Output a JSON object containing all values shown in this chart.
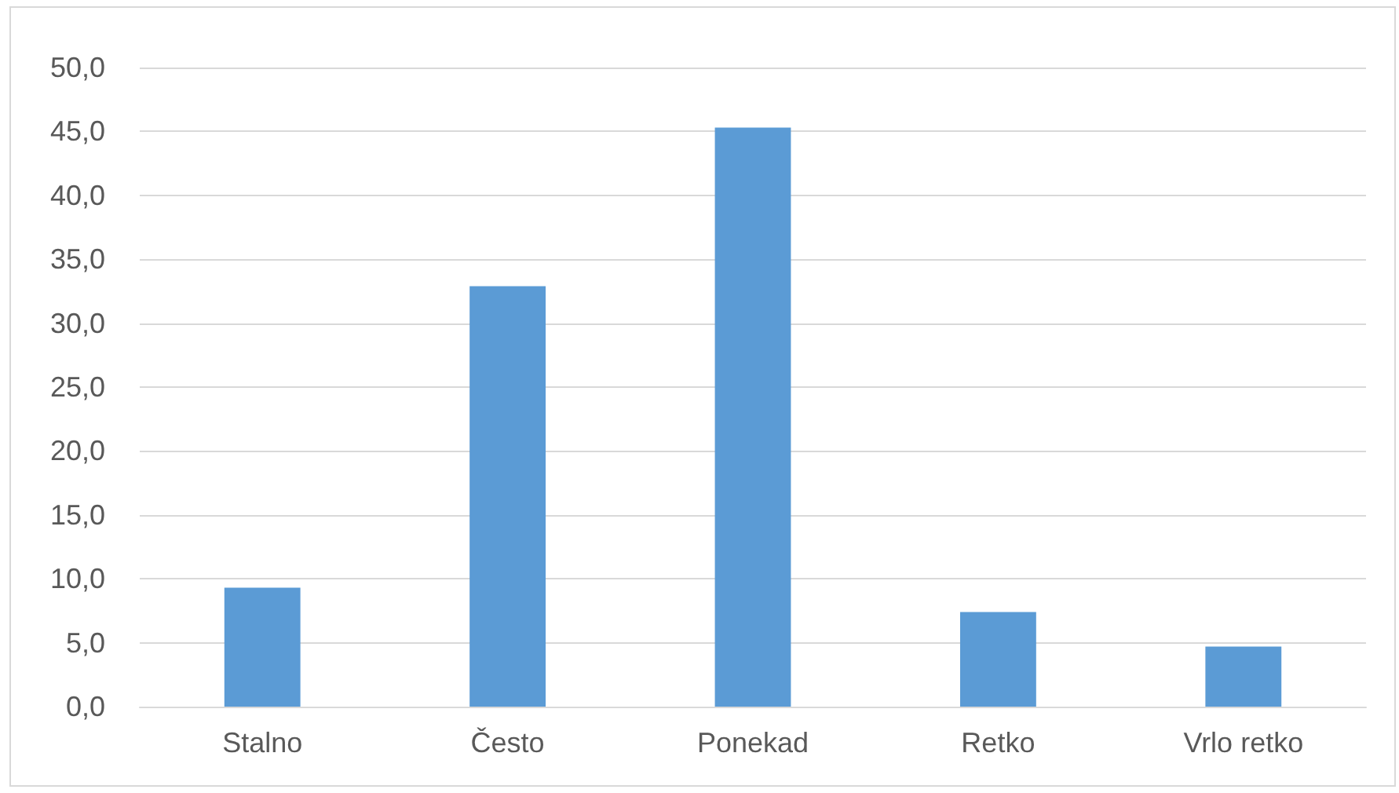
{
  "chart_data": {
    "type": "bar",
    "categories": [
      "Stalno",
      "Često",
      "Ponekad",
      "Retko",
      "Vrlo retko"
    ],
    "values": [
      9.3,
      32.9,
      45.3,
      7.4,
      4.7
    ],
    "color": "#5b9bd5",
    "ylim": [
      0,
      50
    ],
    "yticks": [
      {
        "value": 0,
        "label": "0,0"
      },
      {
        "value": 5,
        "label": "5,0"
      },
      {
        "value": 10,
        "label": "10,0"
      },
      {
        "value": 15,
        "label": "15,0"
      },
      {
        "value": 20,
        "label": "20,0"
      },
      {
        "value": 25,
        "label": "25,0"
      },
      {
        "value": 30,
        "label": "30,0"
      },
      {
        "value": 35,
        "label": "35,0"
      },
      {
        "value": 40,
        "label": "40,0"
      },
      {
        "value": 45,
        "label": "45,0"
      },
      {
        "value": 50,
        "label": "50,0"
      }
    ],
    "grid": true
  }
}
